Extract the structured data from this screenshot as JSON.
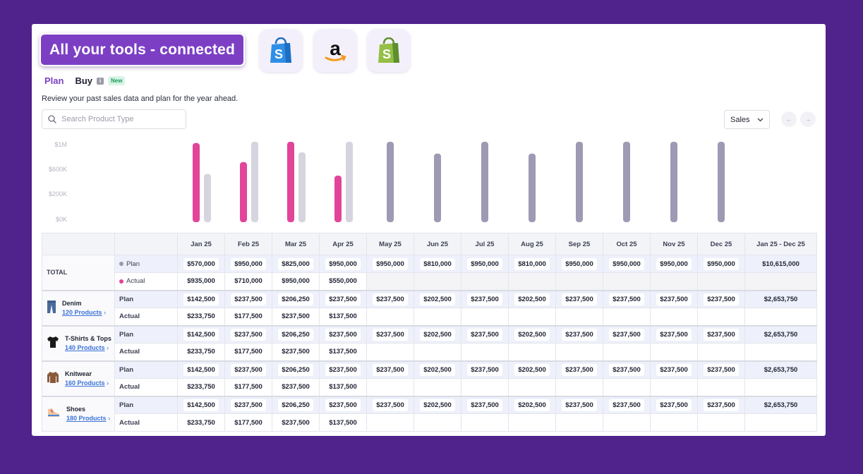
{
  "banner": {
    "headline": "All your tools - connected"
  },
  "tools": [
    {
      "icon": "shopify-bag-blue-icon",
      "color": "#2f8fe6"
    },
    {
      "icon": "amazon-logo-icon",
      "color": "#f39a1e"
    },
    {
      "icon": "shopify-bag-green-icon",
      "color": "#78b247"
    }
  ],
  "tabs": {
    "plan": "Plan",
    "buy": "Buy",
    "info": "i",
    "new_badge": "New"
  },
  "subtitle": "Review your past sales data and plan for the year ahead.",
  "search": {
    "placeholder": "Search Product Type"
  },
  "metric_select": {
    "value": "Sales"
  },
  "chart_data": {
    "type": "bar",
    "categories": [
      "Jan 25",
      "Feb 25",
      "Mar 25",
      "Apr 25",
      "May 25",
      "Jun 25",
      "Jul 25",
      "Aug 25",
      "Sep 25",
      "Oct 25",
      "Nov 25",
      "Dec 25"
    ],
    "y_ticks": [
      "$1M",
      "$600K",
      "$200K",
      "$0K"
    ],
    "series": [
      {
        "values": [
          935000,
          710000,
          950000,
          550000,
          null,
          null,
          null,
          null,
          null,
          null,
          null,
          null
        ],
        "color": "#e2449a"
      },
      {
        "values": [
          570000,
          950000,
          825000,
          950000,
          950000,
          810000,
          950000,
          810000,
          950000,
          950000,
          950000,
          950000
        ],
        "color": "#d6d4df",
        "future_color": "#9e9ab4"
      }
    ]
  },
  "table": {
    "headers": [
      "Jan 25",
      "Feb 25",
      "Mar 25",
      "Apr 25",
      "May 25",
      "Jun 25",
      "Jul 25",
      "Aug 25",
      "Sep 25",
      "Oct 25",
      "Nov 25",
      "Dec 25",
      "Jan 25 - Dec 25"
    ],
    "total": {
      "label": "TOTAL",
      "plan_label": "Plan",
      "actual_label": "Actual",
      "plan_color": "#9a9aa8",
      "actual_color": "#e2449a",
      "plan": [
        "$570,000",
        "$950,000",
        "$825,000",
        "$950,000",
        "$950,000",
        "$810,000",
        "$950,000",
        "$810,000",
        "$950,000",
        "$950,000",
        "$950,000",
        "$950,000",
        "$10,615,000"
      ],
      "actual": [
        "$935,000",
        "$710,000",
        "$950,000",
        "$550,000",
        "",
        "",
        "",
        "",
        "",
        "",
        "",
        "",
        ""
      ]
    },
    "groups": [
      {
        "name": "Denim",
        "link": "120 Products",
        "icon": "jeans-icon",
        "plan_label": "Plan",
        "actual_label": "Actual",
        "plan": [
          "$142,500",
          "$237,500",
          "$206,250",
          "$237,500",
          "$237,500",
          "$202,500",
          "$237,500",
          "$202,500",
          "$237,500",
          "$237,500",
          "$237,500",
          "$237,500",
          "$2,653,750"
        ],
        "actual": [
          "$233,750",
          "$177,500",
          "$237,500",
          "$137,500",
          "",
          "",
          "",
          "",
          "",
          "",
          "",
          "",
          ""
        ]
      },
      {
        "name": "T-Shirts & Tops",
        "link": "140 Products",
        "icon": "tshirt-icon",
        "plan_label": "Plan",
        "actual_label": "Actual",
        "plan": [
          "$142,500",
          "$237,500",
          "$206,250",
          "$237,500",
          "$237,500",
          "$202,500",
          "$237,500",
          "$202,500",
          "$237,500",
          "$237,500",
          "$237,500",
          "$237,500",
          "$2,653,750"
        ],
        "actual": [
          "$233,750",
          "$177,500",
          "$237,500",
          "$137,500",
          "",
          "",
          "",
          "",
          "",
          "",
          "",
          "",
          ""
        ]
      },
      {
        "name": "Knitwear",
        "link": "160 Products",
        "icon": "sweater-icon",
        "plan_label": "Plan",
        "actual_label": "Actual",
        "plan": [
          "$142,500",
          "$237,500",
          "$206,250",
          "$237,500",
          "$237,500",
          "$202,500",
          "$237,500",
          "$202,500",
          "$237,500",
          "$237,500",
          "$237,500",
          "$237,500",
          "$2,653,750"
        ],
        "actual": [
          "$233,750",
          "$177,500",
          "$237,500",
          "$137,500",
          "",
          "",
          "",
          "",
          "",
          "",
          "",
          "",
          ""
        ]
      },
      {
        "name": "Shoes",
        "link": "180 Products",
        "icon": "sneaker-icon",
        "plan_label": "Plan",
        "actual_label": "Actual",
        "plan": [
          "$142,500",
          "$237,500",
          "$206,250",
          "$237,500",
          "$237,500",
          "$202,500",
          "$237,500",
          "$202,500",
          "$237,500",
          "$237,500",
          "$237,500",
          "$237,500",
          "$2,653,750"
        ],
        "actual": [
          "$233,750",
          "$177,500",
          "$237,500",
          "$137,500",
          "",
          "",
          "",
          "",
          "",
          "",
          "",
          "",
          ""
        ]
      }
    ]
  }
}
